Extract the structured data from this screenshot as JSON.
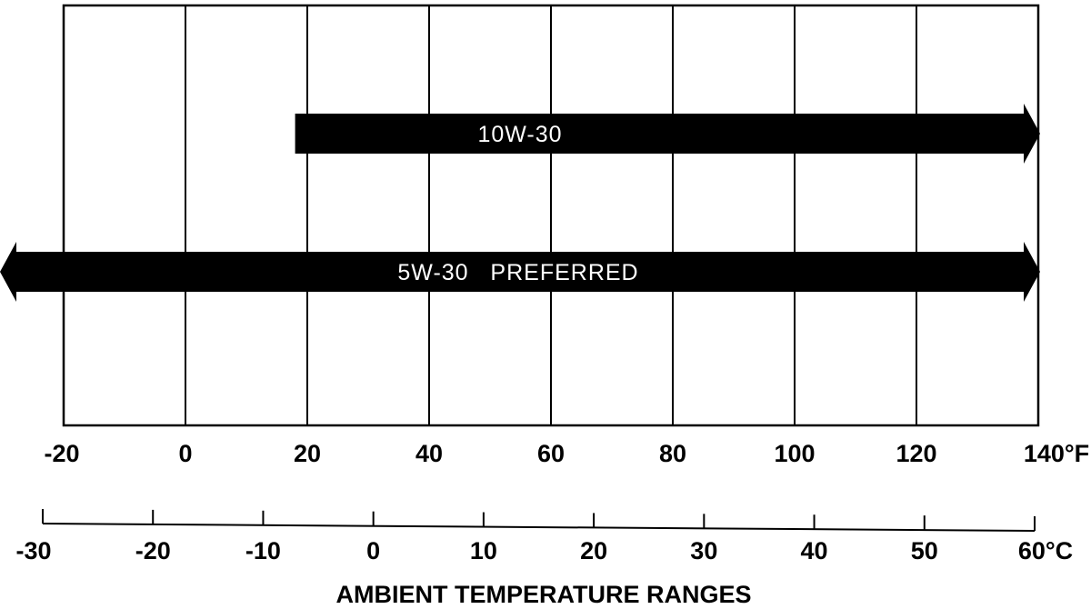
{
  "chart_data": {
    "type": "range-bar",
    "title": "",
    "xlabel": "AMBIENT TEMPERATURE RANGES",
    "x_fahrenheit": {
      "range": [
        -20,
        140
      ],
      "ticks": [
        -20,
        0,
        20,
        40,
        60,
        80,
        100,
        120,
        140
      ],
      "tick_labels": [
        "-20",
        "0",
        "20",
        "40",
        "60",
        "80",
        "100",
        "120",
        "140°F"
      ]
    },
    "x_celsius": {
      "range": [
        -30,
        60
      ],
      "ticks": [
        -30,
        -20,
        -10,
        0,
        10,
        20,
        30,
        40,
        50,
        60
      ],
      "tick_labels": [
        "-30",
        "-20",
        "-10",
        "0",
        "10",
        "20",
        "30",
        "40",
        "50",
        "60°C"
      ]
    },
    "grid": true,
    "series": [
      {
        "name": "10W-30",
        "label": "10W-30",
        "from_f": 18,
        "to_f": 140,
        "extends_left": false,
        "extends_right": true
      },
      {
        "name": "5W-30 PREFERRED",
        "label": "5W-30   PREFERRED",
        "from_f": -20,
        "to_f": 140,
        "extends_left": true,
        "extends_right": true
      }
    ],
    "colors": {
      "bars": "#000000",
      "bar_text": "#ffffff",
      "lines": "#000000"
    }
  }
}
